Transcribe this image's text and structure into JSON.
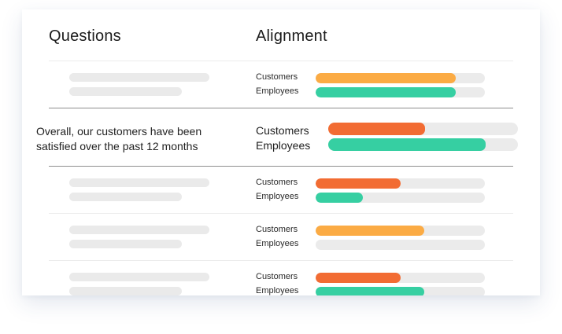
{
  "headers": {
    "questions": "Questions",
    "alignment": "Alignment"
  },
  "colors": {
    "orange_light": "#fbab44",
    "orange_dark": "#f26c33",
    "green": "#36cfa2",
    "track": "#ebebeb",
    "placeholder": "#eaeaea"
  },
  "labels": {
    "customers": "Customers",
    "employees": "Employees"
  },
  "featured": {
    "question": "Overall, our customers have been satisfied over the past 12 months",
    "customers_label": "Customers",
    "employees_label": "Employees",
    "customers_fill": 0.51,
    "employees_fill": 0.83,
    "customers_color": "#f26c33",
    "employees_color": "#36cfa2"
  },
  "rows": [
    {
      "customers_fill": 0.83,
      "employees_fill": 0.83,
      "customers_color": "#fbab44",
      "employees_color": "#36cfa2"
    },
    {
      "customers_fill": 0.5,
      "employees_fill": 0.28,
      "customers_color": "#f26c33",
      "employees_color": "#36cfa2"
    },
    {
      "customers_fill": 0.64,
      "employees_fill": 0,
      "customers_color": "#fbab44",
      "employees_color": "#36cfa2"
    },
    {
      "customers_fill": 0.5,
      "employees_fill": 0.64,
      "customers_color": "#f26c33",
      "employees_color": "#36cfa2"
    }
  ]
}
